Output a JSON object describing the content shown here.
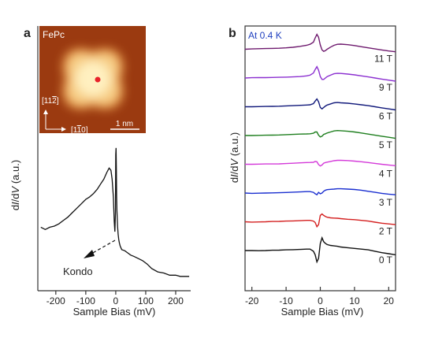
{
  "panels": {
    "a": {
      "label": "a",
      "inset": {
        "molecule": "FePc",
        "dir_y": "[11̅2̅]",
        "dir_y_parts": [
          "[11",
          "2",
          "]"
        ],
        "dir_x_parts": [
          "[1",
          "1",
          "0]"
        ],
        "scale_label": "1 nm",
        "marker_color": "#e8222a"
      },
      "annotation": "Kondo"
    },
    "b": {
      "label": "b",
      "temperature_label": "At 0.4 K",
      "temperature_color": "#1f3fbf"
    }
  },
  "chart_data": [
    {
      "type": "line",
      "panel": "a",
      "xlabel": "Sample Bias (mV)",
      "ylabel": "dI/dV (a.u.)",
      "ylabel_parts": [
        "d",
        "I",
        "/d",
        "V",
        " (a.u.)"
      ],
      "xlim": [
        -260,
        250
      ],
      "ylim": [
        0,
        1
      ],
      "xticks": [
        -200,
        -100,
        0,
        100,
        200
      ],
      "xticklabels": [
        "-200",
        "-100",
        "0",
        "100",
        "200"
      ],
      "yticks_shown": false,
      "series": [
        {
          "color": "#111111",
          "x": [
            -250,
            -235,
            -220,
            -205,
            -190,
            -175,
            -160,
            -145,
            -130,
            -115,
            -100,
            -88,
            -75,
            -62,
            -50,
            -40,
            -30,
            -22,
            -16,
            -12,
            -8,
            -5,
            -3,
            -1,
            0,
            1,
            2,
            3,
            4,
            5,
            6,
            8,
            10,
            12,
            15,
            20,
            30,
            40,
            50,
            60,
            75,
            90,
            105,
            120,
            140,
            160,
            180,
            200,
            215,
            230,
            245
          ],
          "y": [
            0.47,
            0.45,
            0.47,
            0.48,
            0.5,
            0.53,
            0.56,
            0.6,
            0.64,
            0.68,
            0.72,
            0.74,
            0.77,
            0.81,
            0.86,
            0.9,
            0.96,
            1.0,
            0.98,
            0.9,
            0.74,
            0.52,
            0.43,
            0.6,
            1.12,
            1.18,
            0.98,
            0.75,
            0.62,
            0.55,
            0.48,
            0.41,
            0.36,
            0.33,
            0.3,
            0.27,
            0.26,
            0.24,
            0.22,
            0.21,
            0.19,
            0.17,
            0.14,
            0.1,
            0.07,
            0.06,
            0.04,
            0.04,
            0.03,
            0.03,
            0.03
          ]
        }
      ]
    },
    {
      "type": "line",
      "panel": "b",
      "xlabel": "Sample Bias (mV)",
      "ylabel": "dI/dV (a.u.)",
      "ylabel_parts": [
        "d",
        "I",
        "/d",
        "V",
        " (a.u.)"
      ],
      "xlim": [
        -22,
        22
      ],
      "xticks": [
        -20,
        -10,
        0,
        10,
        20
      ],
      "xticklabels": [
        "-20",
        "-10",
        "0",
        "10",
        "20"
      ],
      "yticks_shown": false,
      "x": [
        -22,
        -20,
        -18,
        -16,
        -14,
        -12,
        -10,
        -8,
        -6,
        -4,
        -3,
        -2,
        -1.5,
        -1,
        -0.5,
        0,
        0.5,
        1,
        1.5,
        2,
        3,
        4,
        5,
        6,
        8,
        10,
        12,
        14,
        16,
        18,
        20,
        22
      ],
      "series": [
        {
          "name": "0 T",
          "color": "#111111",
          "offset": 0.0,
          "y": [
            0.0,
            0.0,
            -0.01,
            0.0,
            0.02,
            0.03,
            0.05,
            0.06,
            0.08,
            0.1,
            0.1,
            -0.05,
            -0.3,
            -0.8,
            -0.55,
            0.5,
            0.9,
            0.62,
            0.5,
            0.42,
            0.36,
            0.33,
            0.3,
            0.25,
            0.2,
            0.15,
            0.1,
            0.05,
            -0.05,
            -0.15,
            -0.22,
            -0.3
          ]
        },
        {
          "name": "2 T",
          "color": "#d42020",
          "offset": 1.0,
          "y": [
            0.0,
            -0.02,
            -0.01,
            0.0,
            0.02,
            0.03,
            0.05,
            0.06,
            0.08,
            0.1,
            0.1,
            0.05,
            -0.05,
            -0.35,
            -0.2,
            0.45,
            0.55,
            0.45,
            0.38,
            0.32,
            0.28,
            0.26,
            0.25,
            0.22,
            0.18,
            0.15,
            0.1,
            0.05,
            -0.03,
            -0.1,
            -0.15,
            -0.2
          ]
        },
        {
          "name": "3 T",
          "color": "#1a2fd0",
          "offset": 2.0,
          "y": [
            0.0,
            -0.02,
            -0.01,
            0.0,
            0.01,
            0.02,
            0.04,
            0.06,
            0.08,
            0.1,
            0.1,
            0.05,
            -0.05,
            -0.12,
            0.05,
            -0.05,
            0.0,
            0.12,
            0.2,
            0.24,
            0.26,
            0.28,
            0.3,
            0.3,
            0.28,
            0.25,
            0.2,
            0.12,
            0.05,
            -0.02,
            -0.08,
            -0.12
          ]
        },
        {
          "name": "4 T",
          "color": "#d43ad9",
          "offset": 3.0,
          "y": [
            0.0,
            0.0,
            0.01,
            0.02,
            0.02,
            0.03,
            0.05,
            0.07,
            0.1,
            0.12,
            0.13,
            0.14,
            0.2,
            0.18,
            -0.02,
            -0.12,
            -0.05,
            0.08,
            0.12,
            0.15,
            0.2,
            0.25,
            0.28,
            0.28,
            0.26,
            0.22,
            0.18,
            0.12,
            0.06,
            0.0,
            -0.05,
            -0.1
          ]
        },
        {
          "name": "5 T",
          "color": "#1f7f1f",
          "offset": 4.0,
          "y": [
            0.0,
            0.0,
            0.01,
            0.02,
            0.03,
            0.04,
            0.06,
            0.08,
            0.1,
            0.11,
            0.12,
            0.16,
            0.25,
            0.25,
            0.02,
            -0.1,
            -0.05,
            0.08,
            0.12,
            0.18,
            0.25,
            0.32,
            0.35,
            0.34,
            0.3,
            0.25,
            0.18,
            0.1,
            0.02,
            -0.05,
            -0.12,
            -0.2
          ]
        },
        {
          "name": "6 T",
          "color": "#10187a",
          "offset": 5.0,
          "y": [
            0.0,
            0.0,
            0.01,
            0.02,
            0.03,
            0.04,
            0.06,
            0.08,
            0.1,
            0.12,
            0.14,
            0.22,
            0.4,
            0.55,
            0.35,
            -0.05,
            -0.15,
            -0.05,
            0.05,
            0.12,
            0.2,
            0.28,
            0.3,
            0.28,
            0.25,
            0.2,
            0.14,
            0.08,
            0.0,
            -0.08,
            -0.15,
            -0.22
          ]
        },
        {
          "name": "9 T",
          "color": "#8b2fd0",
          "offset": 6.0,
          "y": [
            0.0,
            0.02,
            0.03,
            0.03,
            0.04,
            0.05,
            0.06,
            0.08,
            0.1,
            0.15,
            0.2,
            0.35,
            0.6,
            0.8,
            0.55,
            0.1,
            -0.1,
            -0.1,
            0.0,
            0.1,
            0.2,
            0.3,
            0.33,
            0.32,
            0.28,
            0.22,
            0.15,
            0.08,
            0.0,
            -0.08,
            -0.15,
            -0.22
          ]
        },
        {
          "name": "11 T",
          "color": "#6e1a6e",
          "offset": 7.0,
          "y": [
            0.0,
            0.02,
            0.04,
            0.05,
            0.06,
            0.07,
            0.1,
            0.14,
            0.2,
            0.28,
            0.35,
            0.5,
            0.8,
            1.05,
            0.85,
            0.3,
            -0.05,
            -0.15,
            -0.1,
            0.0,
            0.15,
            0.28,
            0.35,
            0.36,
            0.32,
            0.26,
            0.18,
            0.1,
            0.02,
            -0.05,
            -0.12,
            -0.18
          ]
        }
      ]
    }
  ]
}
